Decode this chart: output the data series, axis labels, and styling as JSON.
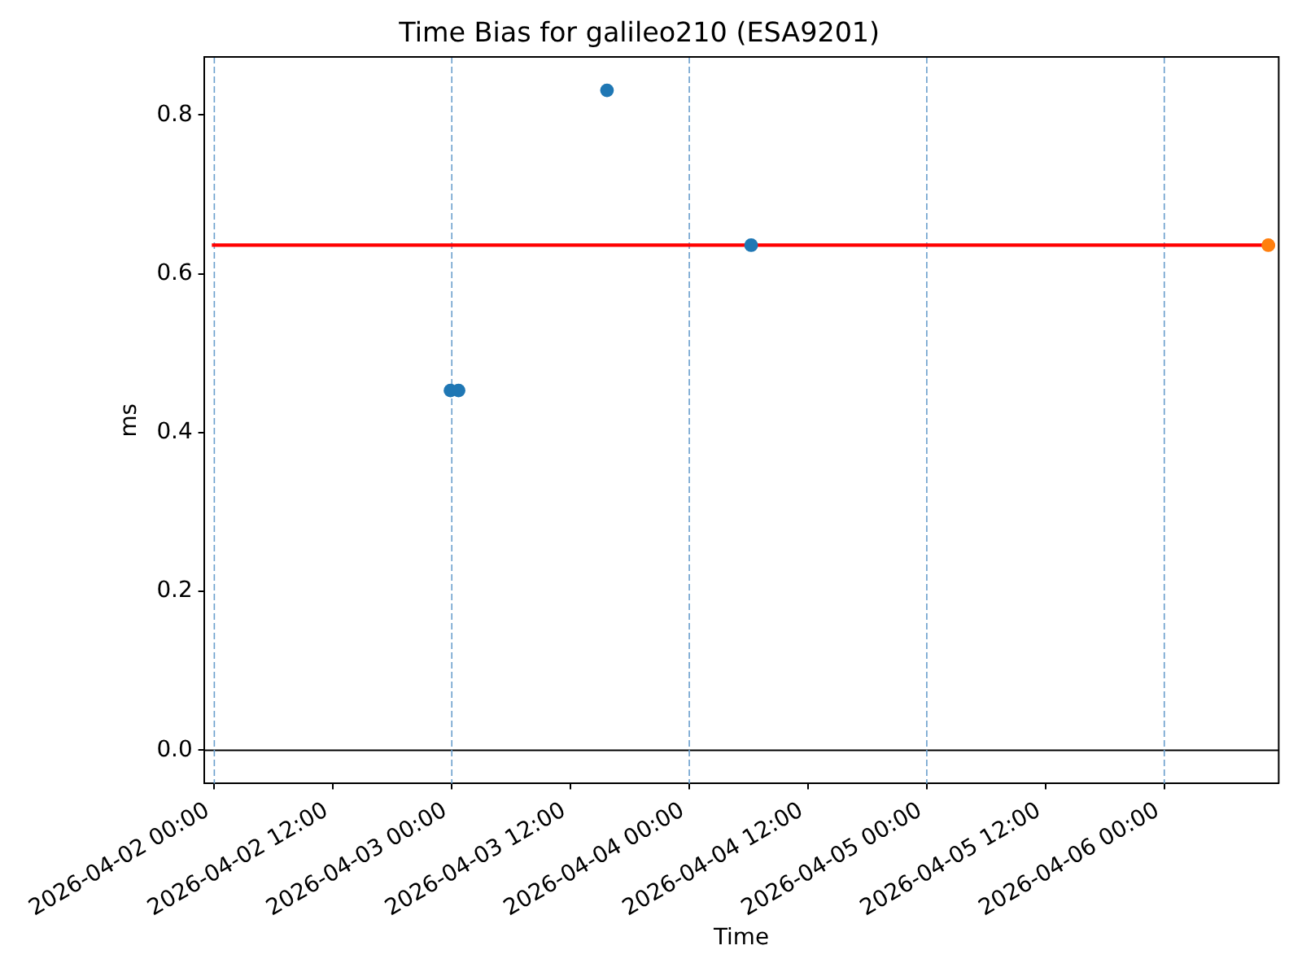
{
  "chart_data": {
    "type": "scatter",
    "title": "Time Bias for galileo210 (ESA9201)",
    "xlabel": "Time",
    "ylabel": "ms",
    "series": [
      {
        "type": "line",
        "color": "#ff0000",
        "marker": "none",
        "x": [
          "2026-04-01T23:45",
          "2026-04-06T11:10"
        ],
        "values": [
          0.636,
          0.636
        ]
      },
      {
        "color": "#1f77b4",
        "x": [
          "2026-04-02T23:52",
          "2026-04-03T00:41",
          "2026-04-03T15:41",
          "2026-04-04T06:15"
        ],
        "values": [
          0.453,
          0.453,
          0.831,
          0.636
        ]
      },
      {
        "color": "#ff7f0e",
        "x": [
          "2026-04-06T10:31"
        ],
        "values": [
          0.636
        ]
      }
    ],
    "marker": "circle",
    "xlim": [
      "2026-04-01T22:57",
      "2026-04-06T11:34"
    ],
    "xticks": [
      {
        "value": "2026-04-02T00:00",
        "label": "2026-04-02 00:00"
      },
      {
        "value": "2026-04-02T12:00",
        "label": "2026-04-02 12:00"
      },
      {
        "value": "2026-04-03T00:00",
        "label": "2026-04-03 00:00"
      },
      {
        "value": "2026-04-03T12:00",
        "label": "2026-04-03 12:00"
      },
      {
        "value": "2026-04-04T00:00",
        "label": "2026-04-04 00:00"
      },
      {
        "value": "2026-04-04T12:00",
        "label": "2026-04-04 12:00"
      },
      {
        "value": "2026-04-05T00:00",
        "label": "2026-04-05 00:00"
      },
      {
        "value": "2026-04-05T12:00",
        "label": "2026-04-05 12:00"
      },
      {
        "value": "2026-04-06T00:00",
        "label": "2026-04-06 00:00"
      }
    ],
    "ylim": [
      -0.042,
      0.873
    ],
    "yticks": [
      {
        "value": 0,
        "label": "0.0"
      },
      0.2,
      0.4,
      0.6,
      0.8
    ],
    "ref_lines": [
      {
        "axis": "y",
        "value": 0,
        "color": "#000000",
        "line_style": "solid"
      },
      {
        "axis": "x",
        "value": "2026-04-02T00:00",
        "color": "#6b9fcd",
        "line_style": "dashed"
      },
      {
        "axis": "x",
        "value": "2026-04-03T00:00",
        "color": "#6b9fcd",
        "line_style": "dashed"
      },
      {
        "axis": "x",
        "value": "2026-04-04T00:00",
        "color": "#6b9fcd",
        "line_style": "dashed"
      },
      {
        "axis": "x",
        "value": "2026-04-05T00:00",
        "color": "#6b9fcd",
        "line_style": "dashed"
      },
      {
        "axis": "x",
        "value": "2026-04-06T00:00",
        "color": "#6b9fcd",
        "line_style": "dashed"
      }
    ]
  }
}
